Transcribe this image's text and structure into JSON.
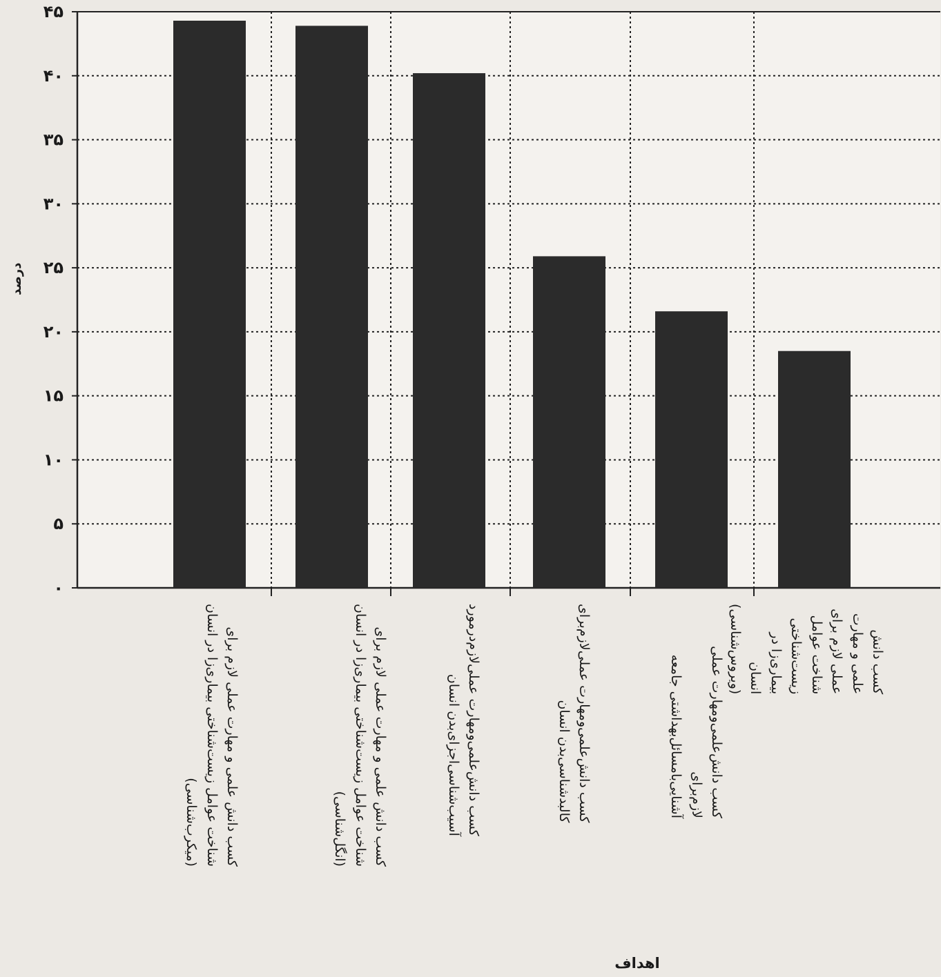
{
  "chart_data": {
    "type": "bar",
    "xlabel": "اهداف",
    "ylabel": "درصد",
    "ylim": [
      0,
      45
    ],
    "y_ticks": [
      0,
      5,
      10,
      15,
      20,
      25,
      30,
      35,
      40,
      45
    ],
    "y_tick_labels": [
      "۰",
      "۵",
      "۱۰",
      "۱۵",
      "۲۰",
      "۲۵",
      "۳۰",
      "۳۵",
      "۴۰",
      "۴۵"
    ],
    "grid": true,
    "bar_color": "#2b2b2b",
    "categories": [
      "کسب دانش علمی و مهارت عملی لازم برای\nشناخت عوامل زیست‌شناختی بیماری‌زا در انسان\n(میکرب‌شناسی)",
      "کسب دانش علمی و مهارت عملی لازم برای\nشناخت عوامل زیست‌شناختی بیماری‌زا در انسان\n(انگل‌شناسی)",
      "کسب دانش‌علمی‌ومهارت عملی‌لازم‌درمورد\nآسیب‌شناسی‌اجزای‌بدن انسان",
      "کسب دانش‌علمی‌ومهارت عملی‌لازم‌برای\nکالبدشناسی‌بدن انسان",
      "کسب دانش‌علمی‌ومهارت عملی لازم‌برای\nآشنایی‌بامسائل‌بهداشتی جامعه",
      "کسب دانش علمی و مهارت عملی لازم برای\nشناخت عوامل زیست‌شناختی بیماری‌زا در انسان\n(ویروس‌شناسی)"
    ],
    "values": [
      44.3,
      43.9,
      40.2,
      25.9,
      21.6,
      18.5
    ]
  }
}
